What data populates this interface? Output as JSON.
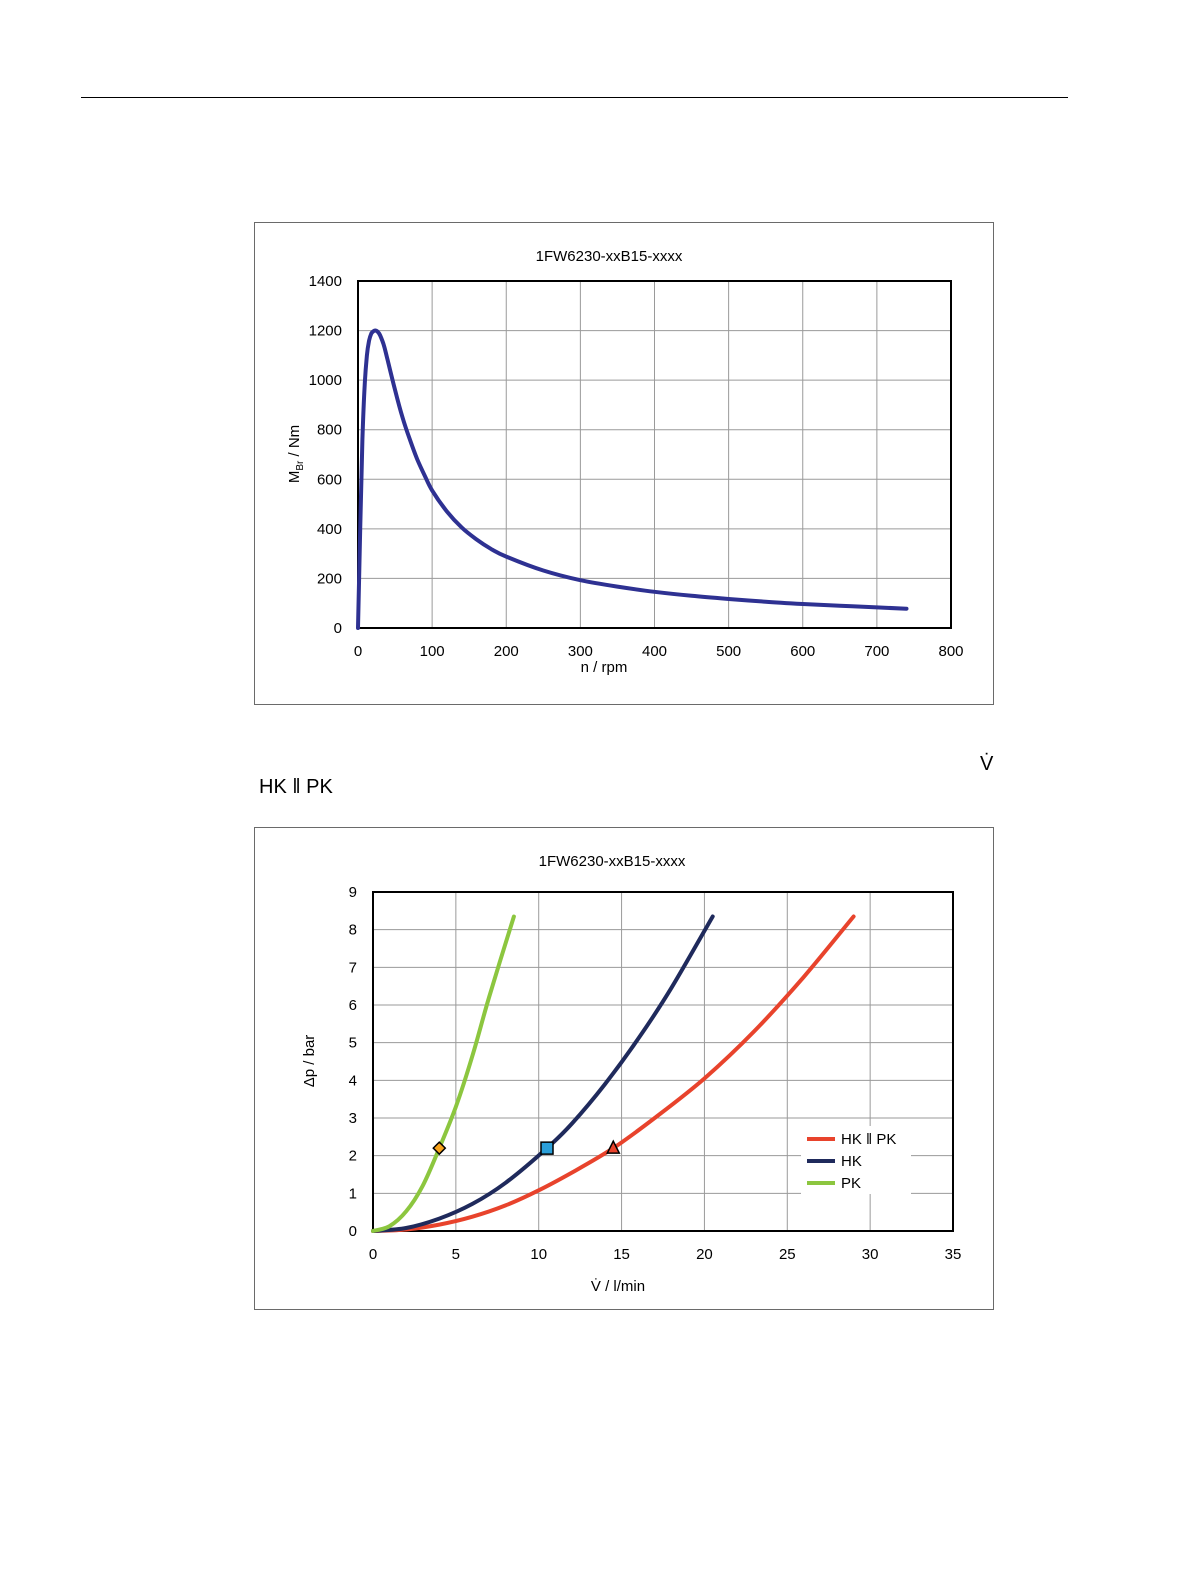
{
  "page": {
    "header_rule": true,
    "vdot_symbol": "V̇",
    "section_label": "HK ‖ PK"
  },
  "chart_data": [
    {
      "type": "line",
      "title": "1FW6230-xxB15-xxxx",
      "xlabel": "n / rpm",
      "ylabel_main": "M",
      "ylabel_sub": "Br",
      "ylabel_rest": " / Nm",
      "xlim": [
        0,
        800
      ],
      "ylim": [
        0,
        1400
      ],
      "xticks": [
        0,
        100,
        200,
        300,
        400,
        500,
        600,
        700,
        800
      ],
      "yticks": [
        0,
        200,
        400,
        600,
        800,
        1000,
        1200,
        1400
      ],
      "grid": true,
      "series": [
        {
          "color": "#2e3192",
          "x": [
            0,
            3,
            6,
            9,
            12,
            15,
            18,
            21,
            24,
            27,
            30,
            35,
            40,
            50,
            60,
            70,
            80,
            90,
            100,
            120,
            140,
            160,
            180,
            200,
            250,
            300,
            350,
            400,
            450,
            500,
            550,
            600,
            650,
            700,
            740
          ],
          "y": [
            0,
            400,
            760,
            980,
            1100,
            1160,
            1188,
            1198,
            1200,
            1194,
            1180,
            1140,
            1080,
            960,
            850,
            760,
            680,
            615,
            555,
            470,
            405,
            357,
            318,
            288,
            232,
            193,
            167,
            146,
            130,
            117,
            106,
            97,
            90,
            83,
            78
          ]
        }
      ]
    },
    {
      "type": "line",
      "title": "1FW6230-xxB15-xxxx",
      "xlabel": "V̇ / l/min",
      "ylabel": "Δp / bar",
      "xlim": [
        0,
        35
      ],
      "ylim": [
        0,
        9
      ],
      "xticks": [
        0,
        5,
        10,
        15,
        20,
        25,
        30,
        35
      ],
      "yticks": [
        0,
        1,
        2,
        3,
        4,
        5,
        6,
        7,
        8,
        9
      ],
      "grid": true,
      "legend": "right",
      "series": [
        {
          "name": "HK ‖ PK",
          "color": "#e8432c",
          "x": [
            0,
            2,
            4,
            6,
            8,
            10,
            12,
            14.5,
            17,
            20,
            23,
            26,
            29
          ],
          "y": [
            0,
            0.04,
            0.17,
            0.38,
            0.68,
            1.08,
            1.55,
            2.2,
            3.0,
            4.05,
            5.3,
            6.75,
            8.35
          ],
          "marker": {
            "shape": "triangle",
            "x": 14.5,
            "y": 2.2,
            "fill": "#e8432c"
          }
        },
        {
          "name": "HK",
          "color": "#1f2a5c",
          "x": [
            0,
            2,
            4,
            6,
            8,
            10.5,
            12,
            14,
            16,
            18,
            20.5
          ],
          "y": [
            0,
            0.08,
            0.33,
            0.72,
            1.28,
            2.2,
            2.85,
            3.9,
            5.1,
            6.45,
            8.35
          ],
          "marker": {
            "shape": "square",
            "x": 10.5,
            "y": 2.2,
            "fill": "#2b9fd9"
          }
        },
        {
          "name": "PK",
          "color": "#8cc63f",
          "x": [
            0,
            1,
            2,
            3,
            4,
            5,
            6,
            7,
            8.5
          ],
          "y": [
            0,
            0.13,
            0.52,
            1.2,
            2.2,
            3.3,
            4.65,
            6.2,
            8.35
          ],
          "marker": {
            "shape": "diamond",
            "x": 4,
            "y": 2.2,
            "fill": "#f7a21b"
          }
        }
      ]
    }
  ]
}
